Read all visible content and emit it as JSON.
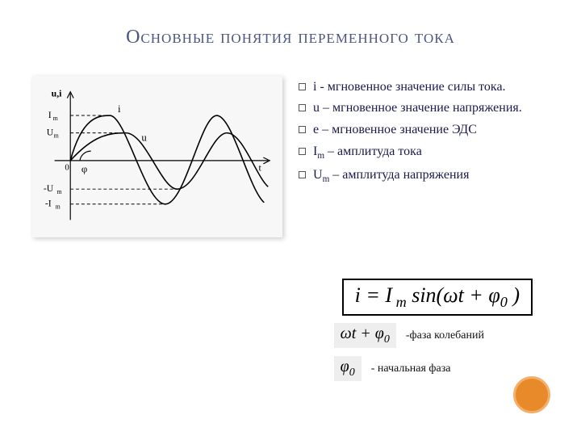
{
  "title": "Основные понятия переменного тока",
  "bullets": [
    "i -   мгновенное значение силы тока.",
    " u – мгновенное значение напряжения.",
    "e – мгновенное значение ЭДС",
    "I<sub>m</sub> – амплитуда тока",
    "U<sub>m</sub> – амплитуда напряжения"
  ],
  "formula": "i = I<sub> m</sub> sin(ωt + φ<sub>0</sub> )",
  "phase1_expr": "ωt + φ<sub>0</sub>",
  "phase1_label": "-фаза колебаний",
  "phase2_expr": "φ<sub>0</sub>",
  "phase2_label": "- начальная фаза",
  "graph": {
    "type": "line",
    "background": "#f7f7f7",
    "axis_color": "#000000",
    "curve_color": "#000000",
    "dash_color": "#000000",
    "y_axis_title": "u,i",
    "x_axis_label": "t",
    "y_ticks_pos": [
      "I_m",
      "U_m"
    ],
    "y_ticks_neg": [
      "-U_m",
      "-I_m"
    ],
    "curves": {
      "i": {
        "amplitude": 1.0,
        "phase_deg": 0,
        "label": "i",
        "line_width": 1.5
      },
      "u": {
        "amplitude": 0.7,
        "phase_deg": 30,
        "label": "u",
        "line_width": 1.5
      }
    },
    "phi_label": "φ",
    "xlim": [
      0,
      720
    ],
    "periods_shown": 1.9,
    "font_family": "Times New Roman",
    "label_fontsize": 12
  },
  "colors": {
    "title": "#4a5680",
    "text": "#1a1a4a",
    "accent_dot_fill": "#e88a2a",
    "accent_dot_border": "#f2b06a",
    "graph_shadow": "rgba(0,0,0,0.2)",
    "phase_expr_bg": "#eeeeee"
  }
}
